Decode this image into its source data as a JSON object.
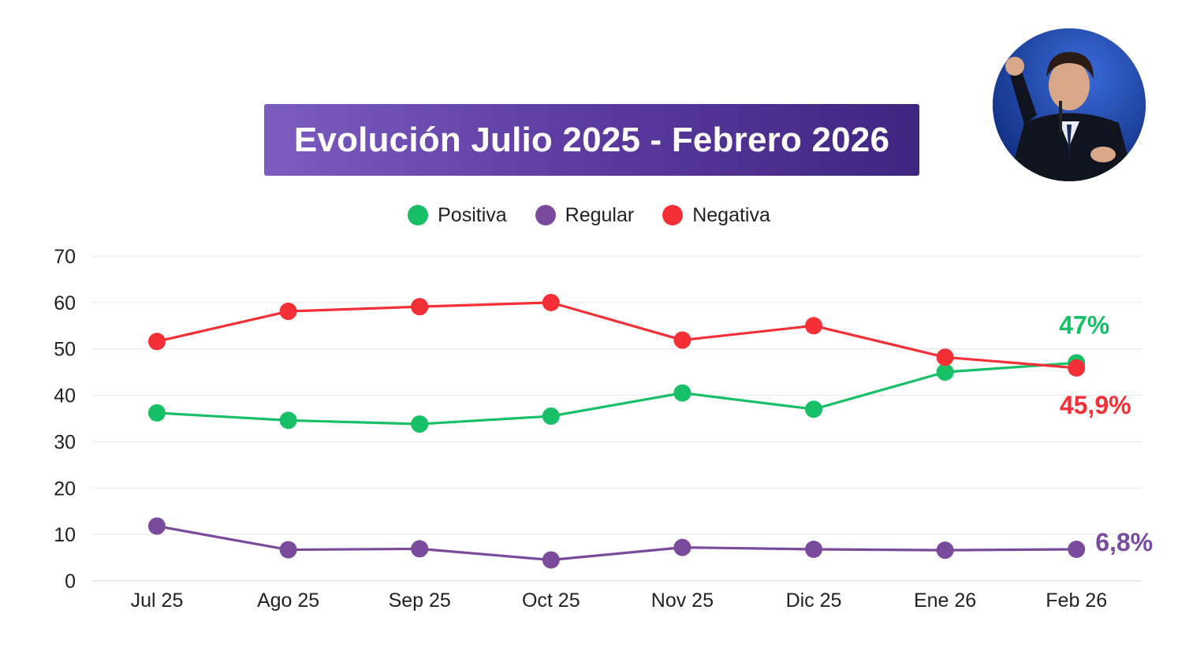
{
  "chart_data": {
    "type": "line",
    "title": "Evolución Julio 2025 - Febrero 2026",
    "categories": [
      "Jul 25",
      "Ago 25",
      "Sep 25",
      "Oct 25",
      "Nov 25",
      "Dic 25",
      "Ene 26",
      "Feb 26"
    ],
    "ylim": [
      0,
      70
    ],
    "yticks": [
      0,
      10,
      20,
      30,
      40,
      50,
      60,
      70
    ],
    "grid": true,
    "legend_position": "top-center",
    "series": [
      {
        "name": "Positiva",
        "color": "#17c067",
        "values": [
          36.2,
          34.6,
          33.8,
          35.5,
          40.5,
          37.0,
          45.0,
          47.0
        ],
        "end_label": "47%"
      },
      {
        "name": "Regular",
        "color": "#7a4a9c",
        "values": [
          11.8,
          6.7,
          6.9,
          4.5,
          7.2,
          6.8,
          6.6,
          6.8
        ],
        "end_label": "6,8%"
      },
      {
        "name": "Negativa",
        "color": "#f52f36",
        "values": [
          51.6,
          58.1,
          59.1,
          60.0,
          51.9,
          55.0,
          48.2,
          45.9
        ],
        "end_label": "45,9%"
      }
    ]
  }
}
